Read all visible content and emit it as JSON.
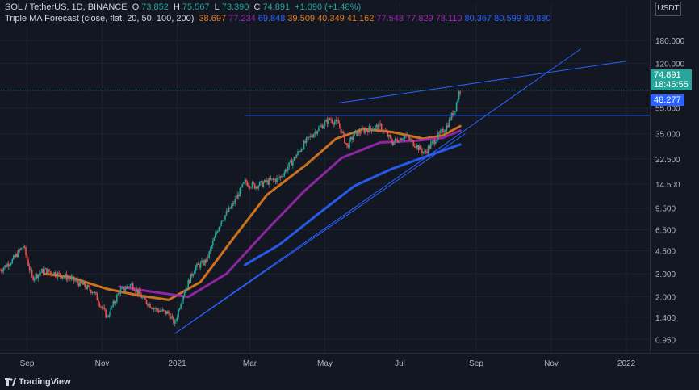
{
  "header": {
    "symbol": "SOL / TetherUS, 1D, BINANCE",
    "open_label": "O",
    "open": "73.852",
    "high_label": "H",
    "high": "75.567",
    "low_label": "L",
    "low": "73.390",
    "close_label": "C",
    "close": "74.891",
    "change": "+1.090 (+1.48%)",
    "indicator": "Triple MA Forecast (close, flat, 20, 50, 100, 200)",
    "ind_values": [
      "38.697",
      "77.234",
      "69.848",
      "39.509",
      "40.349",
      "41.162",
      "77.548",
      "77.829",
      "78.110",
      "80.367",
      "80.599",
      "80.880"
    ]
  },
  "currency": "USDT",
  "price_tag": {
    "value": "74.891",
    "timer": "18:45:55",
    "color": "#26a69a"
  },
  "level_tag": {
    "value": "48.277",
    "color": "#2962ff"
  },
  "brand": "TradingView",
  "colors": {
    "up": "#26a69a",
    "down": "#ef5350",
    "ma_orange": "#e07b1f",
    "ma_purple": "#9c27b0",
    "ma_blue": "#2962ff",
    "trend": "#2962ff"
  },
  "chart_data": {
    "type": "candlestick",
    "log_scale": true,
    "x_labels": [
      "Sep",
      "Nov",
      "2021",
      "Mar",
      "May",
      "Jul",
      "Sep",
      "Nov",
      "2022"
    ],
    "y_labels": [
      "180.000",
      "120.000",
      "55.000",
      "35.000",
      "22.500",
      "14.500",
      "9.500",
      "6.500",
      "4.500",
      "3.000",
      "2.000",
      "1.400",
      "0.950"
    ],
    "x_range": [
      "2020-08-10",
      "2022-01-20"
    ],
    "y_range": [
      0.75,
      260
    ],
    "close_path": [
      [
        "2020-08-10",
        3.2
      ],
      [
        "2020-08-20",
        3.8
      ],
      [
        "2020-08-29",
        4.9
      ],
      [
        "2020-09-05",
        2.8
      ],
      [
        "2020-09-15",
        3.2
      ],
      [
        "2020-09-25",
        3.0
      ],
      [
        "2020-10-05",
        2.8
      ],
      [
        "2020-10-15",
        2.5
      ],
      [
        "2020-10-25",
        2.2
      ],
      [
        "2020-11-05",
        1.4
      ],
      [
        "2020-11-15",
        2.2
      ],
      [
        "2020-11-25",
        2.5
      ],
      [
        "2020-12-05",
        1.9
      ],
      [
        "2020-12-15",
        1.6
      ],
      [
        "2020-12-25",
        1.5
      ],
      [
        "2020-12-30",
        1.25
      ],
      [
        "2021-01-05",
        2.0
      ],
      [
        "2021-01-15",
        3.3
      ],
      [
        "2021-01-25",
        3.8
      ],
      [
        "2021-02-05",
        7.5
      ],
      [
        "2021-02-15",
        10.0
      ],
      [
        "2021-02-25",
        15.0
      ],
      [
        "2021-03-05",
        14.0
      ],
      [
        "2021-03-15",
        15.0
      ],
      [
        "2021-03-25",
        16.0
      ],
      [
        "2021-04-05",
        22.0
      ],
      [
        "2021-04-15",
        30.0
      ],
      [
        "2021-04-25",
        38.0
      ],
      [
        "2021-05-05",
        45.0
      ],
      [
        "2021-05-12",
        42.0
      ],
      [
        "2021-05-19",
        28.0
      ],
      [
        "2021-05-25",
        35.0
      ],
      [
        "2021-06-05",
        38.0
      ],
      [
        "2021-06-15",
        40.0
      ],
      [
        "2021-06-25",
        30.0
      ],
      [
        "2021-07-05",
        34.0
      ],
      [
        "2021-07-15",
        28.0
      ],
      [
        "2021-07-21",
        25.0
      ],
      [
        "2021-07-30",
        32.0
      ],
      [
        "2021-08-08",
        40.0
      ],
      [
        "2021-08-15",
        55.0
      ],
      [
        "2021-08-18",
        72.0
      ],
      [
        "2021-08-19",
        74.891
      ]
    ],
    "moving_averages": [
      {
        "color": "#e07b1f",
        "points": [
          [
            "2020-09-15",
            3.0
          ],
          [
            "2020-10-05",
            2.85
          ],
          [
            "2020-11-05",
            2.3
          ],
          [
            "2020-12-01",
            2.05
          ],
          [
            "2020-12-25",
            1.9
          ],
          [
            "2021-01-20",
            2.6
          ],
          [
            "2021-02-15",
            5.5
          ],
          [
            "2021-03-15",
            12.0
          ],
          [
            "2021-04-15",
            20.0
          ],
          [
            "2021-05-10",
            32.0
          ],
          [
            "2021-06-01",
            38.0
          ],
          [
            "2021-06-25",
            36.0
          ],
          [
            "2021-07-20",
            32.0
          ],
          [
            "2021-08-05",
            34.0
          ],
          [
            "2021-08-19",
            40.0
          ]
        ]
      },
      {
        "color": "#9c27b0",
        "points": [
          [
            "2020-11-15",
            2.4
          ],
          [
            "2020-12-10",
            2.2
          ],
          [
            "2021-01-10",
            2.0
          ],
          [
            "2021-02-10",
            3.0
          ],
          [
            "2021-03-15",
            6.5
          ],
          [
            "2021-04-15",
            13.0
          ],
          [
            "2021-05-15",
            23.0
          ],
          [
            "2021-06-15",
            30.0
          ],
          [
            "2021-07-15",
            31.0
          ],
          [
            "2021-08-05",
            32.5
          ],
          [
            "2021-08-19",
            37.0
          ]
        ]
      },
      {
        "color": "#2962ff",
        "points": [
          [
            "2021-02-25",
            3.5
          ],
          [
            "2021-03-25",
            5.0
          ],
          [
            "2021-04-25",
            8.5
          ],
          [
            "2021-05-25",
            14.0
          ],
          [
            "2021-06-25",
            19.0
          ],
          [
            "2021-07-25",
            24.0
          ],
          [
            "2021-08-19",
            29.0
          ]
        ]
      }
    ],
    "trend_lines": [
      {
        "from": [
          "2020-12-30",
          1.05
        ],
        "to": [
          "2021-11-25",
          155
        ]
      },
      {
        "from": [
          "2020-12-30",
          1.05
        ],
        "to": [
          "2021-08-23",
          35
        ]
      },
      {
        "from": [
          "2021-05-12",
          60
        ],
        "to": [
          "2022-01-01",
          125
        ]
      }
    ],
    "levels": [
      {
        "value": 48.277,
        "from": "2021-02-25",
        "color": "#2962ff",
        "style": "solid"
      },
      {
        "value": 74.891,
        "from": "2020-08-01",
        "color": "#26a69a",
        "style": "dotted"
      }
    ]
  }
}
